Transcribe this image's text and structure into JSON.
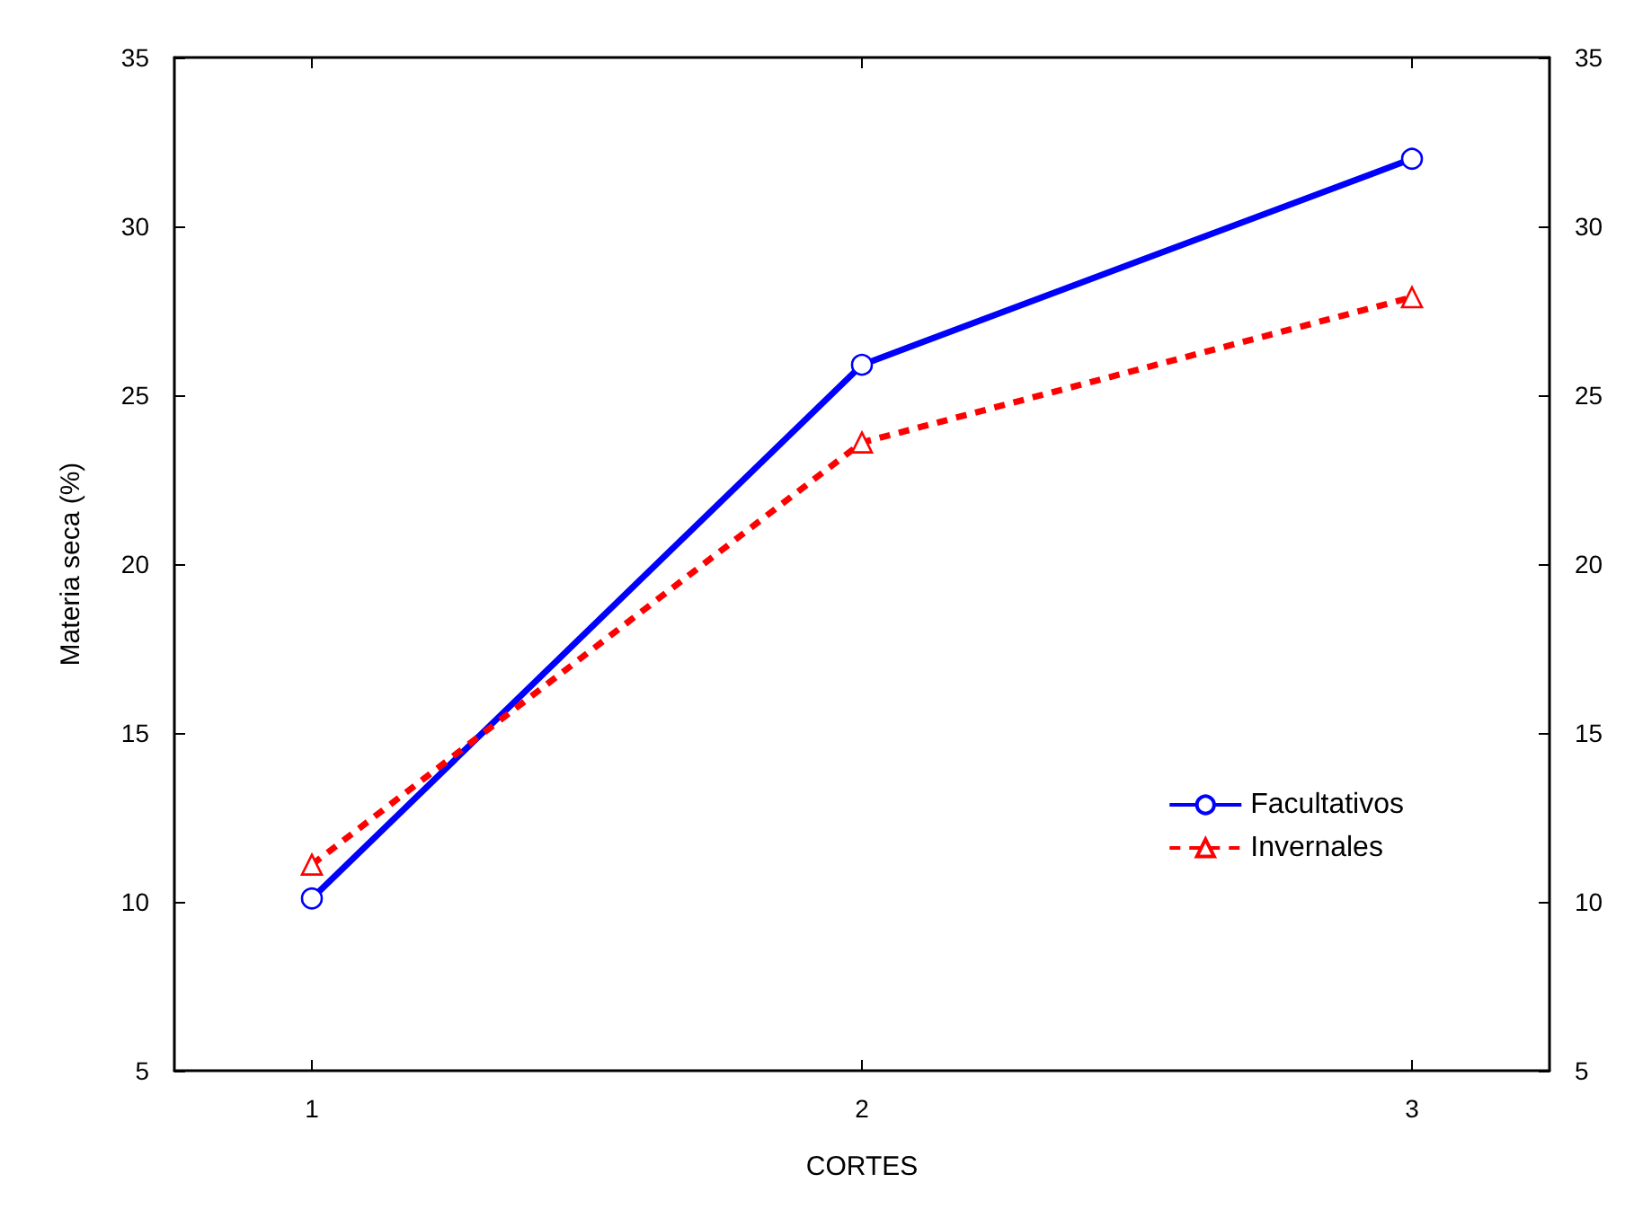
{
  "chart_data": {
    "type": "line",
    "xlabel": "CORTES",
    "ylabel": "Materia seca (%)",
    "x": [
      1,
      2,
      3
    ],
    "xlim": [
      0.75,
      3.25
    ],
    "xticks": [
      1,
      2,
      3
    ],
    "ylim": [
      5,
      35
    ],
    "yticks": [
      5,
      10,
      15,
      20,
      25,
      30,
      35
    ],
    "y2lim": [
      5,
      35
    ],
    "y2ticks": [
      5,
      10,
      15,
      20,
      25,
      30,
      35
    ],
    "series": [
      {
        "name": "Facultativos",
        "color": "#0000ff",
        "values": [
          10.1,
          25.9,
          32.0
        ],
        "marker": "circle",
        "line_style": "solid"
      },
      {
        "name": "Invernales",
        "color": "#ff0000",
        "values": [
          11.1,
          23.6,
          27.9
        ],
        "marker": "triangle",
        "line_style": "dashed"
      }
    ],
    "grid": false,
    "legend": "bottom right"
  }
}
